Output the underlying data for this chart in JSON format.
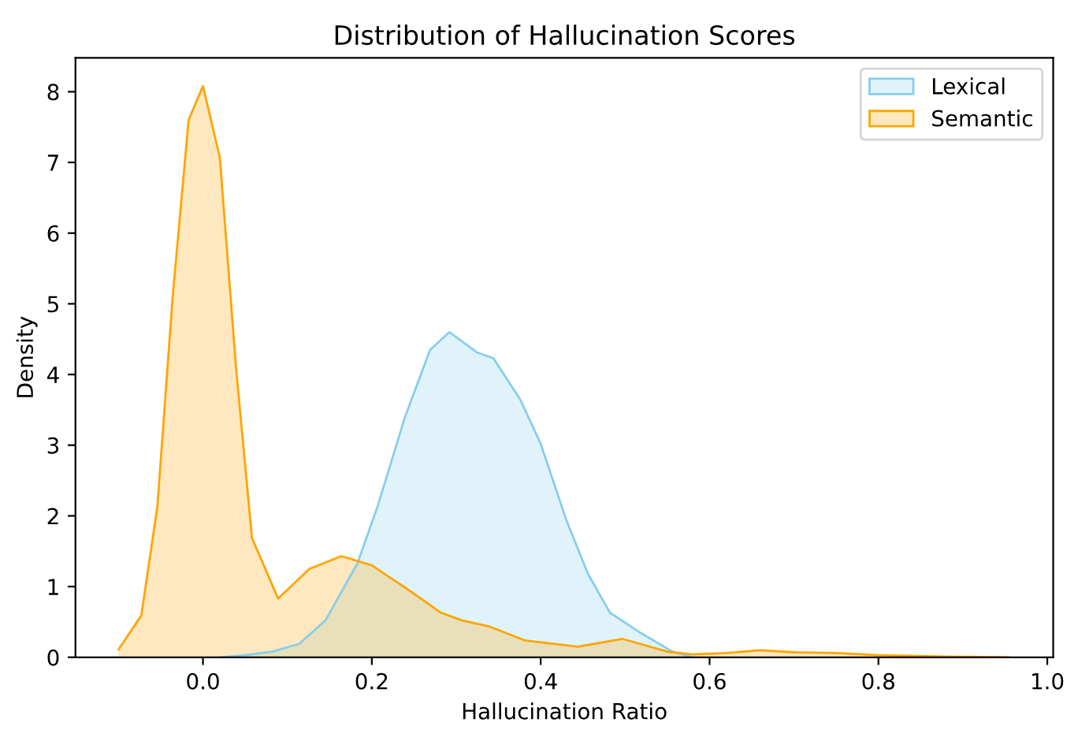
{
  "chart_data": {
    "type": "area",
    "title": "Distribution of Hallucination Scores",
    "xlabel": "Hallucination Ratio",
    "ylabel": "Density",
    "series": [
      {
        "name": "Lexical",
        "color": "#87ceeb",
        "x": [
          0.02,
          0.05,
          0.082,
          0.114,
          0.145,
          0.183,
          0.207,
          0.239,
          0.269,
          0.292,
          0.325,
          0.344,
          0.376,
          0.4,
          0.431,
          0.456,
          0.482,
          0.519,
          0.556,
          0.58
        ],
        "values": [
          0.0,
          0.03,
          0.08,
          0.19,
          0.52,
          1.33,
          2.14,
          3.39,
          4.35,
          4.6,
          4.31,
          4.23,
          3.64,
          3.02,
          1.92,
          1.18,
          0.63,
          0.34,
          0.08,
          0.0
        ]
      },
      {
        "name": "Semantic",
        "color": "#ffa500",
        "x": [
          -0.1,
          -0.073,
          -0.054,
          -0.036,
          -0.017,
          0.0,
          0.02,
          0.039,
          0.058,
          0.089,
          0.126,
          0.164,
          0.2,
          0.239,
          0.282,
          0.307,
          0.338,
          0.381,
          0.444,
          0.497,
          0.55,
          0.58,
          0.62,
          0.66,
          0.7,
          0.75,
          0.8,
          0.88,
          0.955
        ],
        "values": [
          0.11,
          0.59,
          2.13,
          5.08,
          7.6,
          8.08,
          7.07,
          4.12,
          1.69,
          0.83,
          1.25,
          1.43,
          1.3,
          0.99,
          0.63,
          0.52,
          0.44,
          0.24,
          0.15,
          0.26,
          0.08,
          0.04,
          0.06,
          0.1,
          0.07,
          0.06,
          0.03,
          0.01,
          0.0
        ]
      }
    ],
    "xlim": [
      -0.151,
      1.007
    ],
    "ylim": [
      0,
      8.48
    ],
    "xticks": [
      {
        "value": 0.0,
        "label": "0.0"
      },
      {
        "value": 0.2,
        "label": "0.2"
      },
      {
        "value": 0.4,
        "label": "0.4"
      },
      {
        "value": 0.6,
        "label": "0.6"
      },
      {
        "value": 0.8,
        "label": "0.8"
      },
      {
        "value": 1.0,
        "label": "1.0"
      }
    ],
    "yticks": [
      0,
      1,
      2,
      3,
      4,
      5,
      6,
      7,
      8
    ],
    "legend": "top right"
  }
}
